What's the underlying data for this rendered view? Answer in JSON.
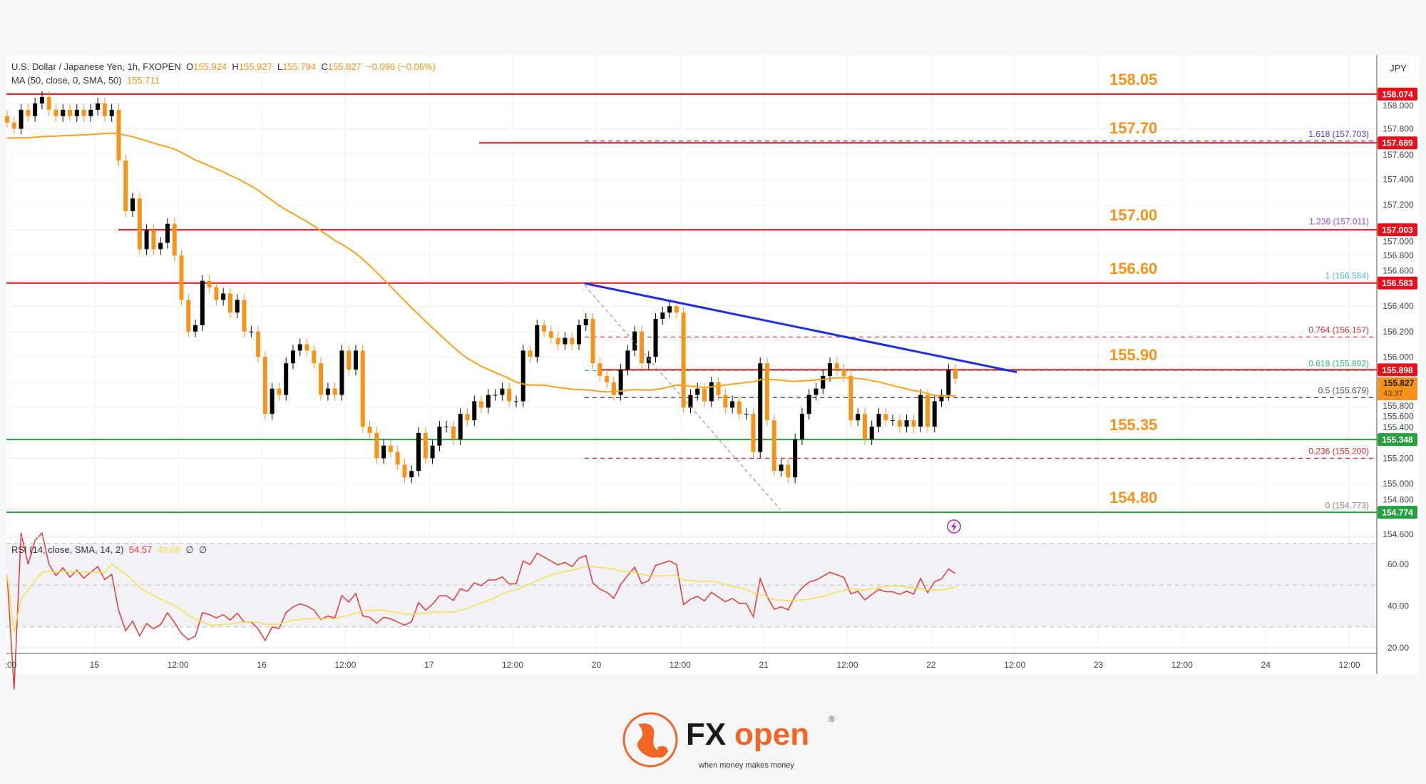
{
  "header": {
    "symbol": "U.S. Dollar / Japanese Yen, 1h, FXOPEN",
    "o_label": "O",
    "o": "155.924",
    "h_label": "H",
    "h": "155.927",
    "l_label": "L",
    "l": "155.794",
    "c_label": "C",
    "c": "155.827",
    "change": "−0.096 (−0.06%)",
    "ma_label": "MA (50, close, 0, SMA, 50)",
    "ma_value": "155.711"
  },
  "currency": "JPY",
  "rsi_header": {
    "label": "RSI (14, close, SMA, 14, 2)",
    "rsi": "54.57",
    "sma": "49.06",
    "extra1": "∅",
    "extra2": "∅"
  },
  "colors": {
    "up": "#000000",
    "down": "#f7931a",
    "ma": "#f7a21b",
    "resistance": "#e8101a",
    "support": "#26a040",
    "trendline": "#1f2ee0",
    "rsi": "#e53935",
    "rsi_sma": "#f4e04d",
    "level_text": "#f7931a"
  },
  "chart_data": [
    {
      "type": "candlestick",
      "title": "U.S. Dollar / Japanese Yen, 1h, FXOPEN",
      "ylim": [
        154.5,
        158.2
      ],
      "y_ticks": [
        "158.000",
        "157.800",
        "157.600",
        "157.400",
        "157.200",
        "157.000",
        "156.800",
        "156.600",
        "156.400",
        "156.200",
        "156.000",
        "155.800",
        "155.600",
        "155.400",
        "155.200",
        "155.000",
        "154.800",
        "154.600"
      ],
      "x_ticks": [
        ":00",
        "15",
        "12:00",
        "16",
        "12:00",
        "17",
        "12:00",
        "20",
        "12:00",
        "21",
        "12:00",
        "22",
        "12:00",
        "23",
        "12:00",
        "24",
        "12:00"
      ],
      "close": [
        157.85,
        157.8,
        157.95,
        157.9,
        158.0,
        158.05,
        157.95,
        157.9,
        157.95,
        157.9,
        157.95,
        157.9,
        157.95,
        158.0,
        157.9,
        157.95,
        157.55,
        157.15,
        157.25,
        156.85,
        157.0,
        156.85,
        156.9,
        157.05,
        156.8,
        156.45,
        156.2,
        156.25,
        156.6,
        156.55,
        156.45,
        156.5,
        156.35,
        156.45,
        156.2,
        156.2,
        156.0,
        155.55,
        155.75,
        155.7,
        155.95,
        156.05,
        156.1,
        156.05,
        155.95,
        155.7,
        155.75,
        155.7,
        156.05,
        155.9,
        156.05,
        155.45,
        155.4,
        155.2,
        155.3,
        155.25,
        155.15,
        155.05,
        155.1,
        155.4,
        155.2,
        155.3,
        155.45,
        155.45,
        155.35,
        155.55,
        155.5,
        155.65,
        155.6,
        155.7,
        155.7,
        155.75,
        155.65,
        155.65,
        156.05,
        156.0,
        156.25,
        156.2,
        156.15,
        156.1,
        156.15,
        156.1,
        156.25,
        156.3,
        155.95,
        155.85,
        155.8,
        155.7,
        155.9,
        156.05,
        156.2,
        155.95,
        156.0,
        156.3,
        156.35,
        156.4,
        156.35,
        155.6,
        155.7,
        155.75,
        155.65,
        155.8,
        155.7,
        155.6,
        155.65,
        155.55,
        155.55,
        155.25,
        155.95,
        155.5,
        155.1,
        155.15,
        155.05,
        155.35,
        155.55,
        155.7,
        155.75,
        155.85,
        155.95,
        155.9,
        155.85,
        155.5,
        155.55,
        155.35,
        155.45,
        155.55,
        155.5,
        155.5,
        155.45,
        155.5,
        155.45,
        155.7,
        155.45,
        155.65,
        155.7,
        155.9,
        155.827
      ],
      "ma_period": 50,
      "horizontal_levels": [
        {
          "label": "158.05",
          "price": 158.074,
          "badge": "158.074",
          "type": "resistance",
          "from": "full"
        },
        {
          "label": "157.70",
          "price": 157.689,
          "badge": "157.689",
          "type": "resistance",
          "from": "partial"
        },
        {
          "label": "157.00",
          "price": 157.003,
          "badge": "157.003",
          "type": "resistance",
          "from": "partial"
        },
        {
          "label": "156.60",
          "price": 156.583,
          "badge": "156.583",
          "type": "resistance",
          "from": "full"
        },
        {
          "label": "155.90",
          "price": 155.898,
          "badge": "155.898",
          "type": "resistance",
          "from": "partial"
        },
        {
          "label": "155.35",
          "price": 155.348,
          "badge": "155.348",
          "type": "support",
          "from": "full"
        },
        {
          "label": "154.80",
          "price": 154.774,
          "badge": "154.774",
          "type": "support",
          "from": "full"
        }
      ],
      "current_price": {
        "badge": "155.827",
        "countdown": "43:37"
      },
      "fibonacci": [
        {
          "label": "1.618 (157.703)",
          "price": 157.703,
          "color": "#3f3fbf",
          "line": true
        },
        {
          "label": "1.236 (157.011)",
          "price": 157.011,
          "color": "#9b4fc9",
          "line": false
        },
        {
          "label": "1 (156.584)",
          "price": 156.584,
          "color": "#5ab0d8",
          "line": false
        },
        {
          "label": "0.764 (156.157)",
          "price": 156.157,
          "color": "#d0303a",
          "line": true
        },
        {
          "label": "0.618 (155.892)",
          "price": 155.892,
          "color": "#3cb88a",
          "line": true
        },
        {
          "label": "0.5 (155.679)",
          "price": 155.679,
          "color": "#555555",
          "line": true
        },
        {
          "label": "0.236 (155.200)",
          "price": 155.2,
          "color": "#d0303a",
          "line": true
        },
        {
          "label": "0 (154.773)",
          "price": 154.773,
          "color": "#888888",
          "line": false
        }
      ],
      "trendline": {
        "from_price": 156.58,
        "to_price": 155.88
      }
    },
    {
      "type": "line",
      "title": "RSI (14, close, SMA, 14, 2)",
      "ylim": [
        15,
        85
      ],
      "y_ticks": [
        "60.00",
        "40.00",
        "20.00"
      ],
      "bands": [
        70,
        50,
        30
      ],
      "rsi_period": 14,
      "sma_period": 14
    }
  ],
  "logo": {
    "brand": "FXopen",
    "tagline": "when money makes money",
    "reg": "®"
  }
}
